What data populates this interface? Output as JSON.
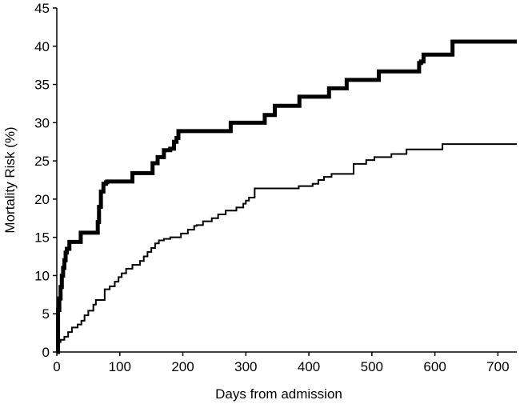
{
  "chart_data": {
    "type": "line",
    "step": true,
    "xlabel": "Days from admission",
    "ylabel": "Mortality Risk (%)",
    "xlim": [
      0,
      730
    ],
    "ylim": [
      0,
      45
    ],
    "x_ticks": [
      0,
      100,
      200,
      300,
      400,
      500,
      600,
      700
    ],
    "y_ticks": [
      0,
      5,
      10,
      15,
      20,
      25,
      30,
      35,
      40,
      45
    ],
    "grid": false,
    "legend": "none",
    "series": [
      {
        "color": "#000000",
        "weight": "thick",
        "x": [
          0,
          2,
          4,
          6,
          8,
          10,
          12,
          14,
          16,
          20,
          38,
          65,
          67,
          70,
          74,
          78,
          80,
          120,
          152,
          160,
          170,
          180,
          186,
          190,
          193,
          276,
          330,
          346,
          385,
          432,
          460,
          511,
          575,
          578,
          582,
          628,
          730
        ],
        "y": [
          0,
          5.5,
          7,
          8.5,
          10,
          11,
          12,
          13,
          13.5,
          14.4,
          15.6,
          17,
          19,
          21,
          22,
          22.2,
          22.3,
          23.4,
          24.7,
          25.5,
          26.4,
          26.6,
          27.5,
          28,
          28.9,
          30.0,
          31.0,
          32.2,
          33.4,
          34.5,
          35.6,
          36.7,
          37.8,
          38.0,
          38.9,
          40.6,
          40.6
        ]
      },
      {
        "color": "#000000",
        "weight": "thin",
        "x": [
          0,
          2,
          6,
          12,
          18,
          24,
          33,
          39,
          44,
          50,
          58,
          62,
          76,
          84,
          92,
          98,
          103,
          110,
          120,
          132,
          138,
          144,
          150,
          156,
          162,
          170,
          180,
          197,
          208,
          218,
          222,
          232,
          246,
          256,
          268,
          285,
          296,
          300,
          305,
          314,
          384,
          406,
          415,
          424,
          436,
          471,
          491,
          504,
          531,
          555,
          612,
          730
        ],
        "y": [
          0,
          1.3,
          1.6,
          2.0,
          2.6,
          3.2,
          3.6,
          4.1,
          4.8,
          5.4,
          6.2,
          6.8,
          8.2,
          8.6,
          9.2,
          9.8,
          10.3,
          10.9,
          11.4,
          11.9,
          12.5,
          13.1,
          13.6,
          14.2,
          14.6,
          14.8,
          15.0,
          15.5,
          16.0,
          16.5,
          16.6,
          17.1,
          17.5,
          18.0,
          18.5,
          18.9,
          19.4,
          19.8,
          20.2,
          21.4,
          21.7,
          22.0,
          22.5,
          22.9,
          23.3,
          24.6,
          25.1,
          25.5,
          25.9,
          26.5,
          27.2,
          27.2
        ]
      }
    ]
  }
}
